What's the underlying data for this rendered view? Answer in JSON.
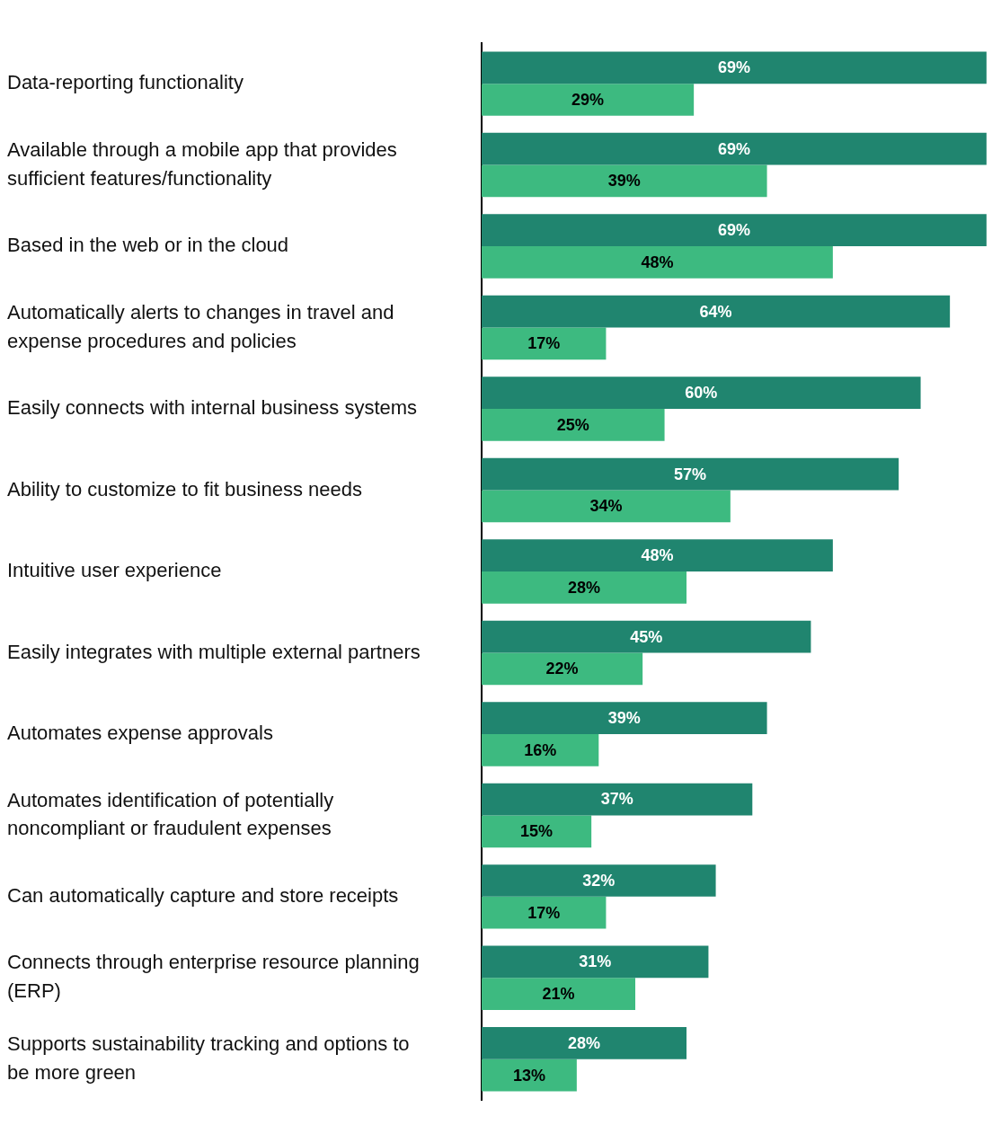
{
  "chart_data": {
    "type": "bar",
    "orientation": "horizontal",
    "tick_labels": "y",
    "grid": false,
    "legend": false,
    "categories": [
      "Data-reporting functionality",
      "Available through a mobile app that provides sufficient features/functionality",
      "Based in the web or in the cloud",
      "Automatically alerts to changes in travel and expense procedures and policies",
      "Easily connects with internal business systems",
      "Ability to customize to fit business needs",
      "Intuitive user experience",
      "Easily integrates with multiple external partners",
      "Automates expense approvals",
      "Automates identification of potentially noncompliant or fraudulent expenses",
      "Can automatically capture and store receipts",
      "Connects through enterprise resource planning (ERP)",
      "Supports sustainability tracking and options to be more green"
    ],
    "series": [
      {
        "color": "#20856f",
        "values": [
          69,
          69,
          69,
          64,
          60,
          57,
          48,
          45,
          39,
          37,
          32,
          31,
          28
        ],
        "value_labels": [
          "69%",
          "69%",
          "69%",
          "64%",
          "60%",
          "57%",
          "48%",
          "45%",
          "39%",
          "37%",
          "32%",
          "31%",
          "28%"
        ]
      },
      {
        "color": "#3dba80",
        "values": [
          29,
          39,
          48,
          17,
          25,
          34,
          28,
          22,
          16,
          15,
          17,
          21,
          13
        ],
        "value_labels": [
          "29%",
          "39%",
          "48%",
          "17%",
          "25%",
          "34%",
          "28%",
          "22%",
          "16%",
          "15%",
          "17%",
          "21%",
          "13%"
        ]
      }
    ]
  }
}
